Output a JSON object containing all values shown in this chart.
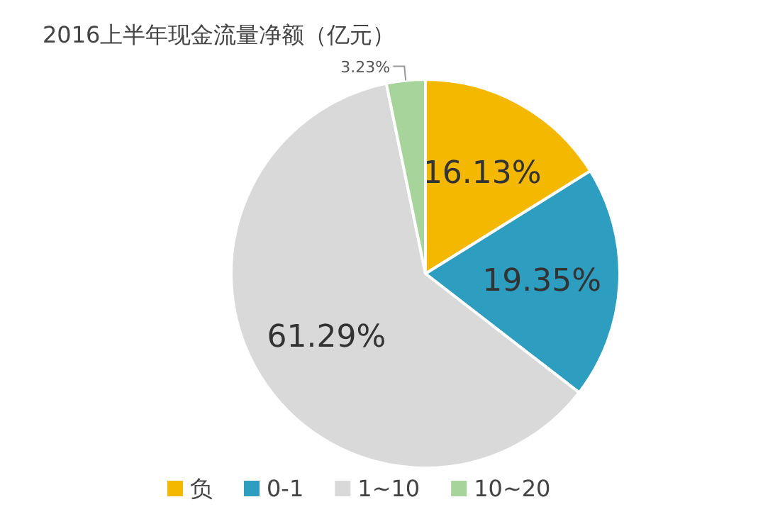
{
  "chart_data": {
    "type": "pie",
    "title": "2016上半年现金流量净额（亿元）",
    "categories": [
      "负",
      "0-1",
      "1~10",
      "10~20"
    ],
    "values": [
      16.13,
      19.35,
      61.29,
      3.23
    ],
    "colors": [
      "#f5b800",
      "#2e9ec0",
      "#d9d9d9",
      "#a6d49a"
    ],
    "value_labels": [
      "16.13%",
      "19.35%",
      "61.29%",
      "3.23%"
    ],
    "legend": "bottom"
  }
}
